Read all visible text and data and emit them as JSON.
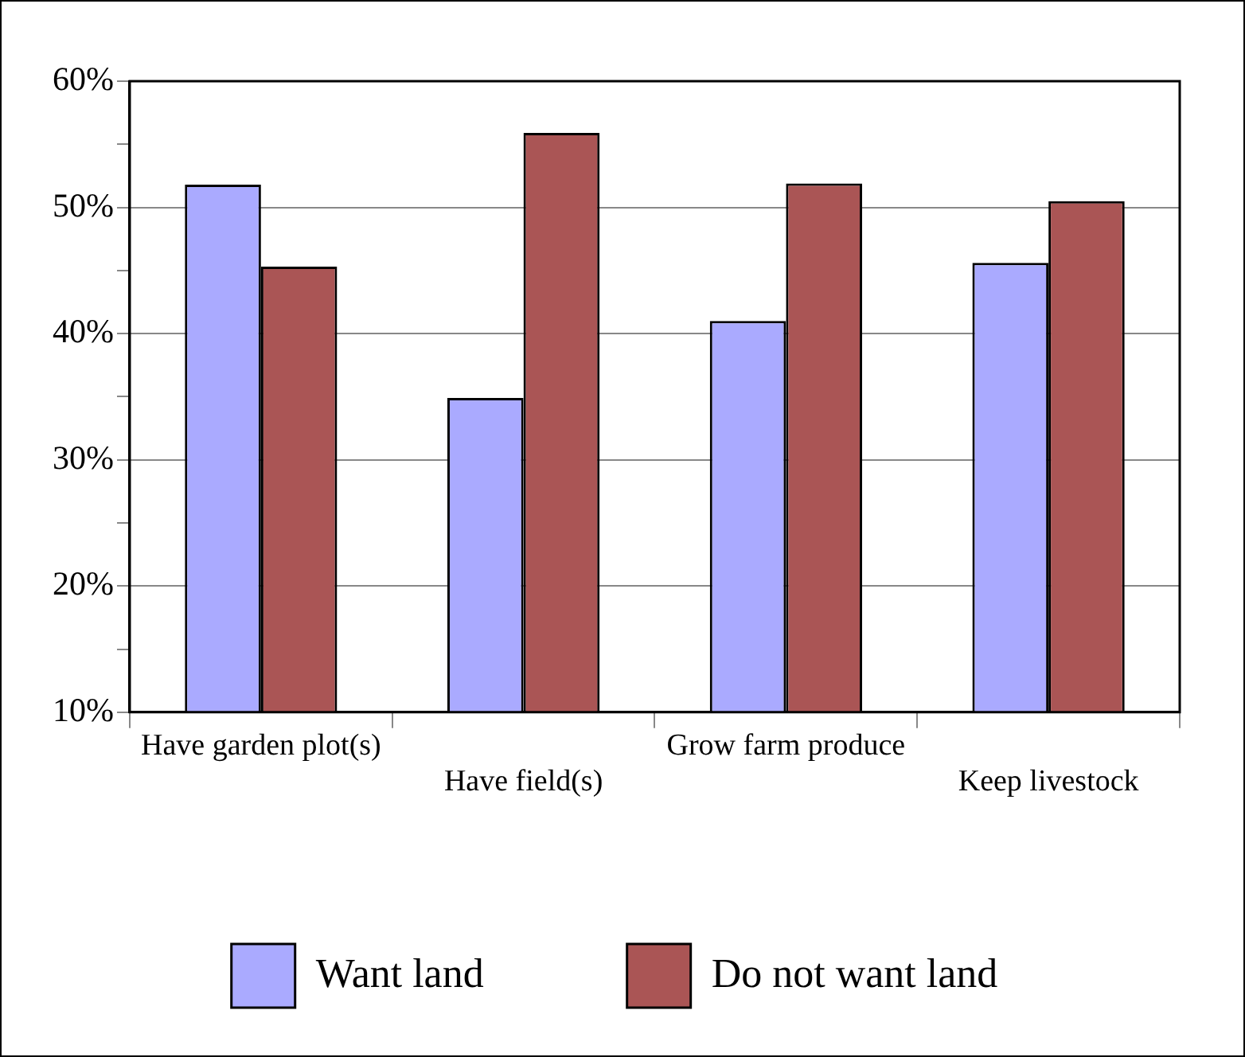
{
  "chart_data": {
    "type": "bar",
    "categories": [
      "Have garden plot(s)",
      "Have field(s)",
      "Grow farm produce",
      "Keep livestock"
    ],
    "series": [
      {
        "name": "Want land",
        "color": "#aaaaff",
        "values": [
          51.8,
          34.9,
          41.0,
          45.6
        ]
      },
      {
        "name": "Do not want land",
        "color": "#aa5555",
        "values": [
          45.3,
          55.9,
          51.9,
          50.5
        ]
      }
    ],
    "ylim": [
      10,
      60
    ],
    "yticks": [
      {
        "value": 10,
        "label": "10%"
      },
      {
        "value": 15,
        "label": null
      },
      {
        "value": 20,
        "label": "20%"
      },
      {
        "value": 25,
        "label": null
      },
      {
        "value": 30,
        "label": "30%"
      },
      {
        "value": 35,
        "label": null
      },
      {
        "value": 40,
        "label": "40%"
      },
      {
        "value": 45,
        "label": null
      },
      {
        "value": 50,
        "label": "50%"
      },
      {
        "value": 55,
        "label": null
      },
      {
        "value": 60,
        "label": "60%"
      }
    ],
    "grid": "y",
    "legend": "bottom"
  }
}
